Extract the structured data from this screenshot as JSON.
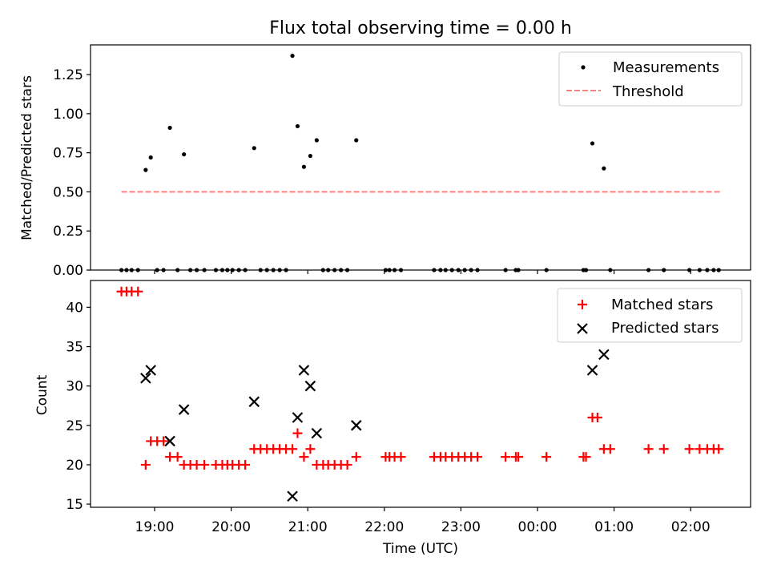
{
  "figure_title": "Flux total observing time = 0.00 h",
  "xlabel": "Time (UTC)",
  "x_ticks": [
    "19:00",
    "20:00",
    "21:00",
    "22:00",
    "23:00",
    "00:00",
    "01:00",
    "02:00"
  ],
  "chart_data": [
    {
      "type": "scatter",
      "title": "Flux total observing time = 0.00 h",
      "ylabel": "Matched/Predicted stars",
      "xlabel": "",
      "ylim": [
        0,
        1.44
      ],
      "y_ticks": [
        "0.00",
        "0.25",
        "0.50",
        "0.75",
        "1.00",
        "1.25"
      ],
      "legend_position": "top-right",
      "grid": false,
      "series": [
        {
          "name": "Measurements",
          "color": "#000000",
          "marker": "dot",
          "points": [
            [
              "18:34",
              0
            ],
            [
              "18:38",
              0
            ],
            [
              "18:42",
              0
            ],
            [
              "18:47",
              0
            ],
            [
              "18:53",
              0.64
            ],
            [
              "18:57",
              0.72
            ],
            [
              "19:02",
              0
            ],
            [
              "19:07",
              0
            ],
            [
              "19:12",
              0.91
            ],
            [
              "19:18",
              0
            ],
            [
              "19:23",
              0.74
            ],
            [
              "19:28",
              0
            ],
            [
              "19:33",
              0
            ],
            [
              "19:39",
              0
            ],
            [
              "19:48",
              0
            ],
            [
              "19:53",
              0
            ],
            [
              "19:57",
              0
            ],
            [
              "20:01",
              0
            ],
            [
              "20:06",
              0
            ],
            [
              "20:11",
              0
            ],
            [
              "20:18",
              0.78
            ],
            [
              "20:23",
              0
            ],
            [
              "20:28",
              0
            ],
            [
              "20:33",
              0
            ],
            [
              "20:38",
              0
            ],
            [
              "20:43",
              0
            ],
            [
              "20:48",
              1.37
            ],
            [
              "20:52",
              0.92
            ],
            [
              "20:57",
              0.66
            ],
            [
              "21:02",
              0.73
            ],
            [
              "21:07",
              0.83
            ],
            [
              "21:12",
              0
            ],
            [
              "21:16",
              0
            ],
            [
              "21:21",
              0
            ],
            [
              "21:26",
              0
            ],
            [
              "21:31",
              0
            ],
            [
              "21:38",
              0.83
            ],
            [
              "22:01",
              0
            ],
            [
              "22:04",
              0
            ],
            [
              "22:08",
              0
            ],
            [
              "22:13",
              0
            ],
            [
              "22:39",
              0
            ],
            [
              "22:44",
              0
            ],
            [
              "22:48",
              0
            ],
            [
              "22:53",
              0
            ],
            [
              "22:58",
              0
            ],
            [
              "23:03",
              0
            ],
            [
              "23:08",
              0
            ],
            [
              "23:13",
              0
            ],
            [
              "23:35",
              0
            ],
            [
              "23:43",
              0
            ],
            [
              "23:45",
              0
            ],
            [
              "00:07",
              0
            ],
            [
              "00:36",
              0
            ],
            [
              "00:38",
              0
            ],
            [
              "00:43",
              0.81
            ],
            [
              "00:52",
              0.65
            ],
            [
              "00:57",
              0
            ],
            [
              "01:27",
              0
            ],
            [
              "01:39",
              0
            ],
            [
              "01:59",
              0
            ],
            [
              "02:07",
              0
            ],
            [
              "02:13",
              0
            ],
            [
              "02:18",
              0
            ],
            [
              "02:22",
              0
            ]
          ]
        },
        {
          "name": "Threshold",
          "color": "#ff7f7f",
          "style": "dashed",
          "points": [
            [
              "18:34",
              0.5
            ],
            [
              "02:24",
              0.5
            ]
          ]
        }
      ]
    },
    {
      "type": "scatter",
      "title": "",
      "ylabel": "Count",
      "xlabel": "Time (UTC)",
      "ylim": [
        14.6,
        43.4
      ],
      "y_ticks": [
        "15",
        "20",
        "25",
        "30",
        "35",
        "40"
      ],
      "legend_position": "top-right",
      "grid": false,
      "series": [
        {
          "name": "Matched stars",
          "color": "#ff0000",
          "marker": "plus",
          "points": [
            [
              "18:34",
              42
            ],
            [
              "18:38",
              42
            ],
            [
              "18:42",
              42
            ],
            [
              "18:47",
              42
            ],
            [
              "18:53",
              20
            ],
            [
              "18:57",
              23
            ],
            [
              "19:02",
              23
            ],
            [
              "19:07",
              23
            ],
            [
              "19:12",
              21
            ],
            [
              "19:18",
              21
            ],
            [
              "19:23",
              20
            ],
            [
              "19:28",
              20
            ],
            [
              "19:33",
              20
            ],
            [
              "19:39",
              20
            ],
            [
              "19:48",
              20
            ],
            [
              "19:53",
              20
            ],
            [
              "19:57",
              20
            ],
            [
              "20:01",
              20
            ],
            [
              "20:06",
              20
            ],
            [
              "20:11",
              20
            ],
            [
              "20:18",
              22
            ],
            [
              "20:23",
              22
            ],
            [
              "20:28",
              22
            ],
            [
              "20:33",
              22
            ],
            [
              "20:38",
              22
            ],
            [
              "20:43",
              22
            ],
            [
              "20:48",
              22
            ],
            [
              "20:52",
              24
            ],
            [
              "20:57",
              21
            ],
            [
              "21:02",
              22
            ],
            [
              "21:07",
              20
            ],
            [
              "21:12",
              20
            ],
            [
              "21:16",
              20
            ],
            [
              "21:21",
              20
            ],
            [
              "21:26",
              20
            ],
            [
              "21:31",
              20
            ],
            [
              "21:38",
              21
            ],
            [
              "22:01",
              21
            ],
            [
              "22:04",
              21
            ],
            [
              "22:08",
              21
            ],
            [
              "22:13",
              21
            ],
            [
              "22:39",
              21
            ],
            [
              "22:44",
              21
            ],
            [
              "22:48",
              21
            ],
            [
              "22:53",
              21
            ],
            [
              "22:58",
              21
            ],
            [
              "23:03",
              21
            ],
            [
              "23:08",
              21
            ],
            [
              "23:13",
              21
            ],
            [
              "23:35",
              21
            ],
            [
              "23:43",
              21
            ],
            [
              "23:45",
              21
            ],
            [
              "00:07",
              21
            ],
            [
              "00:36",
              21
            ],
            [
              "00:38",
              21
            ],
            [
              "00:43",
              26
            ],
            [
              "00:47",
              26
            ],
            [
              "00:52",
              22
            ],
            [
              "00:57",
              22
            ],
            [
              "01:27",
              22
            ],
            [
              "01:39",
              22
            ],
            [
              "01:59",
              22
            ],
            [
              "02:07",
              22
            ],
            [
              "02:13",
              22
            ],
            [
              "02:18",
              22
            ],
            [
              "02:22",
              22
            ]
          ]
        },
        {
          "name": "Predicted stars",
          "color": "#000000",
          "marker": "x",
          "points": [
            [
              "18:53",
              31
            ],
            [
              "18:57",
              32
            ],
            [
              "19:12",
              23
            ],
            [
              "19:23",
              27
            ],
            [
              "20:18",
              28
            ],
            [
              "20:48",
              16
            ],
            [
              "20:52",
              26
            ],
            [
              "20:57",
              32
            ],
            [
              "21:02",
              30
            ],
            [
              "21:07",
              24
            ],
            [
              "21:38",
              25
            ],
            [
              "00:43",
              32
            ],
            [
              "00:52",
              34
            ]
          ]
        }
      ]
    }
  ]
}
